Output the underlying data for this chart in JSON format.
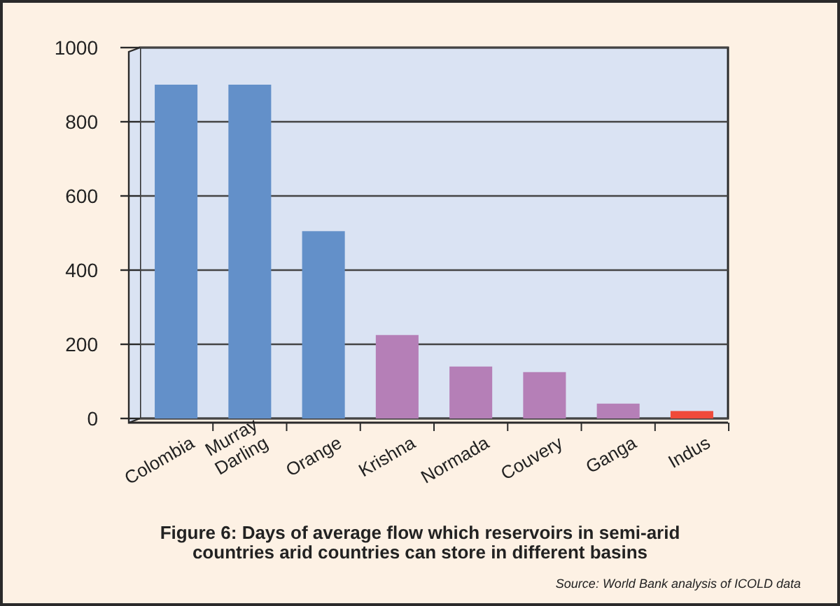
{
  "chart_data": {
    "type": "bar",
    "title": "Figure 6:  Days of average flow which reservoirs in semi-arid countries arid countries can store in different basins",
    "categories": [
      "Colombia",
      "Murray Darling",
      "Orange",
      "Krishna",
      "Normada",
      "Couvery",
      "Ganga",
      "Indus"
    ],
    "values": [
      900,
      900,
      505,
      225,
      140,
      125,
      40,
      20
    ],
    "colors": [
      "#6390c9",
      "#6390c9",
      "#6390c9",
      "#b57fb7",
      "#b57fb7",
      "#b57fb7",
      "#b57fb7",
      "#ef4a3a"
    ],
    "ylim": [
      0,
      1000
    ],
    "yticks": [
      0,
      200,
      400,
      600,
      800,
      1000
    ],
    "grid": "y",
    "annotations": [
      "Source: World Bank analysis of ICOLD data"
    ]
  }
}
